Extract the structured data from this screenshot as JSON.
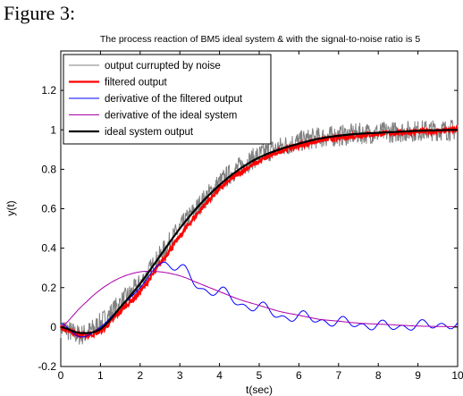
{
  "figure_label": "Figure 3:",
  "chart_data": {
    "type": "line",
    "title": "The process reaction of BM5 ideal system & with the signal-to-noise ratio is 5",
    "xlabel": "t(sec)",
    "ylabel": "y(t)",
    "xlim": [
      0,
      10
    ],
    "ylim": [
      -0.2,
      1.4
    ],
    "xticks": [
      "0",
      "1",
      "2",
      "3",
      "4",
      "5",
      "6",
      "7",
      "8",
      "9",
      "10"
    ],
    "yticks": [
      "-0.2",
      "0",
      "0.2",
      "0.4",
      "0.6",
      "0.8",
      "1",
      "1.2"
    ],
    "grid": false,
    "legend_position": "top-left",
    "series": [
      {
        "name": "output currupted by noise",
        "color": "#808080",
        "t": [
          0,
          0.5,
          1,
          1.5,
          2,
          2.5,
          3,
          3.5,
          4,
          4.5,
          5,
          5.5,
          6,
          6.5,
          7,
          7.5,
          8,
          8.5,
          9,
          9.5,
          10
        ],
        "y": [
          0,
          -0.04,
          0.02,
          0.12,
          0.22,
          0.36,
          0.5,
          0.62,
          0.73,
          0.81,
          0.87,
          0.91,
          0.94,
          0.96,
          0.97,
          0.98,
          0.985,
          0.99,
          0.995,
          0.998,
          1.0
        ]
      },
      {
        "name": "filtered output",
        "color": "#ff0000",
        "t": [
          0,
          0.5,
          1,
          1.5,
          2,
          2.5,
          3,
          3.5,
          4,
          4.5,
          5,
          5.5,
          6,
          6.5,
          7,
          7.5,
          8,
          8.5,
          9,
          9.5,
          10
        ],
        "y": [
          0,
          -0.04,
          -0.02,
          0.08,
          0.18,
          0.32,
          0.46,
          0.59,
          0.7,
          0.78,
          0.84,
          0.89,
          0.92,
          0.945,
          0.96,
          0.97,
          0.98,
          0.985,
          0.99,
          0.995,
          1.0
        ]
      },
      {
        "name": "derivative of the filtered output",
        "color": "#0000ff",
        "t": [
          0,
          0.5,
          1,
          1.5,
          2,
          2.5,
          3,
          3.5,
          4,
          4.5,
          5,
          5.5,
          6,
          6.5,
          7,
          7.5,
          8,
          8.5,
          9,
          9.5,
          10
        ],
        "y": [
          0.02,
          -0.05,
          0.0,
          0.1,
          0.2,
          0.32,
          0.3,
          0.2,
          0.18,
          0.12,
          0.1,
          0.06,
          0.05,
          0.04,
          0.02,
          0.02,
          0.0,
          0.01,
          0.0,
          0.02,
          0.0
        ]
      },
      {
        "name": "derivative of the ideal system",
        "color": "#aa00aa",
        "t": [
          0,
          0.5,
          1,
          1.5,
          2,
          2.5,
          3,
          3.5,
          4,
          4.5,
          5,
          5.5,
          6,
          6.5,
          7,
          7.5,
          8,
          8.5,
          9,
          9.5,
          10
        ],
        "y": [
          0,
          0.1,
          0.19,
          0.25,
          0.28,
          0.28,
          0.26,
          0.22,
          0.18,
          0.14,
          0.11,
          0.08,
          0.06,
          0.04,
          0.03,
          0.02,
          0.015,
          0.01,
          0.005,
          0.003,
          0.002
        ]
      },
      {
        "name": "ideal system output",
        "color": "#000000",
        "t": [
          0,
          0.5,
          1,
          1.5,
          2,
          2.5,
          3,
          3.5,
          4,
          4.5,
          5,
          5.5,
          6,
          6.5,
          7,
          7.5,
          8,
          8.5,
          9,
          9.5,
          10
        ],
        "y": [
          0,
          -0.03,
          -0.01,
          0.1,
          0.22,
          0.36,
          0.5,
          0.62,
          0.72,
          0.8,
          0.86,
          0.9,
          0.93,
          0.955,
          0.97,
          0.98,
          0.985,
          0.99,
          0.995,
          0.998,
          1.0
        ]
      }
    ]
  }
}
